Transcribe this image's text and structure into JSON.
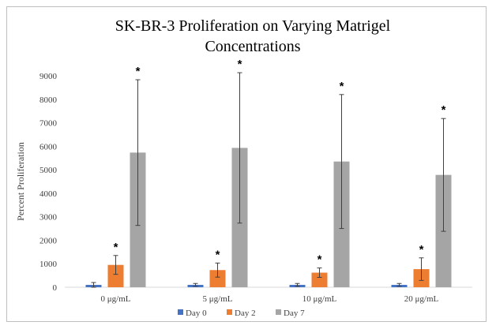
{
  "chart_data": {
    "type": "bar",
    "title": "SK-BR-3 Proliferation on Varying Matrigel Concentrations",
    "xlabel": "",
    "ylabel": "Percent Proliferation",
    "ylim": [
      0,
      9000
    ],
    "yticks": [
      0,
      1000,
      2000,
      3000,
      4000,
      5000,
      6000,
      7000,
      8000,
      9000
    ],
    "categories": [
      "0 μg/mL",
      "5 μg/mL",
      "10 μg/mL",
      "20 μg/mL"
    ],
    "series": [
      {
        "name": "Day 0",
        "color": "#4472C4",
        "values": [
          100,
          100,
          100,
          100
        ],
        "errors": [
          100,
          60,
          60,
          60
        ]
      },
      {
        "name": "Day 2",
        "color": "#ED7D31",
        "values": [
          950,
          730,
          620,
          770
        ],
        "errors": [
          400,
          300,
          200,
          480
        ]
      },
      {
        "name": "Day 7",
        "color": "#A5A5A5",
        "values": [
          5730,
          5930,
          5350,
          4780
        ],
        "errors": [
          3100,
          3200,
          2850,
          2400
        ]
      }
    ],
    "annotations": [
      {
        "category": "0 μg/mL",
        "series": "Day 2",
        "text": "*"
      },
      {
        "category": "0 μg/mL",
        "series": "Day 7",
        "text": "*"
      },
      {
        "category": "5 μg/mL",
        "series": "Day 2",
        "text": "*"
      },
      {
        "category": "5 μg/mL",
        "series": "Day 7",
        "text": "*"
      },
      {
        "category": "10 μg/mL",
        "series": "Day 2",
        "text": "*"
      },
      {
        "category": "10 μg/mL",
        "series": "Day 7",
        "text": "*"
      },
      {
        "category": "20 μg/mL",
        "series": "Day 2",
        "text": "*"
      },
      {
        "category": "20 μg/mL",
        "series": "Day 7",
        "text": "*"
      }
    ],
    "legend_position": "bottom",
    "grid": false
  }
}
